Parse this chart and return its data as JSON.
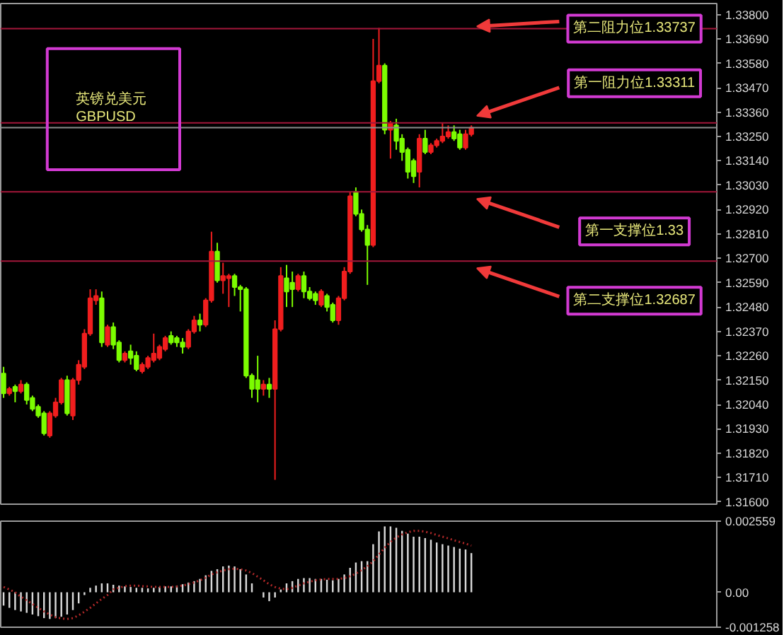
{
  "chart_data": [
    {
      "type": "candlestick",
      "title": "英镑兑美元",
      "subtitle": "GBPUSD",
      "categories": [
        null,
        null,
        null,
        null,
        null,
        null,
        null,
        null,
        null,
        null,
        null,
        null,
        null,
        null,
        null,
        null,
        null,
        null,
        null,
        null,
        null,
        null,
        null,
        null,
        null,
        null,
        null,
        null,
        null,
        null,
        null,
        null,
        null,
        null,
        null,
        null,
        null,
        null,
        null,
        null,
        null,
        null,
        null,
        null,
        null,
        null,
        null,
        null,
        null,
        null,
        null,
        null,
        null,
        null,
        null,
        null,
        null,
        null,
        null,
        null,
        null,
        null,
        null,
        null,
        null,
        null,
        null,
        null,
        null,
        null,
        null,
        null,
        null,
        null,
        null,
        null,
        null,
        null,
        null,
        null,
        null,
        null,
        null,
        null,
        null,
        null,
        null,
        null,
        null,
        null,
        null,
        null,
        null,
        null,
        null,
        null,
        null,
        null,
        null,
        null,
        null,
        null,
        null,
        null,
        null,
        null,
        null,
        null,
        null,
        null,
        null,
        null,
        null,
        null,
        null,
        null,
        null,
        null,
        null,
        null,
        null,
        null,
        null,
        null
      ],
      "ohlc": [
        [
          1.3218,
          1.3221,
          1.3207,
          1.3209
        ],
        [
          1.3209,
          1.3212,
          1.3208,
          1.3211
        ],
        [
          1.3212,
          1.3213,
          1.3205,
          1.321
        ],
        [
          1.321,
          1.3215,
          1.3209,
          1.3213
        ],
        [
          1.3213,
          1.3214,
          1.3204,
          1.3206
        ],
        [
          1.3207,
          1.3208,
          1.3201,
          1.3202
        ],
        [
          1.3203,
          1.3204,
          1.3198,
          1.3199
        ],
        [
          1.32,
          1.3201,
          1.319,
          1.3191
        ],
        [
          1.319,
          1.3201,
          1.3189,
          1.32
        ],
        [
          1.3199,
          1.3207,
          1.3198,
          1.3205
        ],
        [
          1.3205,
          1.3216,
          1.3204,
          1.3215
        ],
        [
          1.3215,
          1.3217,
          1.3199,
          1.32
        ],
        [
          1.3199,
          1.3216,
          1.3197,
          1.3215
        ],
        [
          1.3215,
          1.3224,
          1.3213,
          1.3222
        ],
        [
          1.3221,
          1.3238,
          1.322,
          1.3236
        ],
        [
          1.3236,
          1.3256,
          1.3235,
          1.3252
        ],
        [
          1.3251,
          1.3256,
          1.3249,
          1.3253
        ],
        [
          1.3252,
          1.3255,
          1.323,
          1.3232
        ],
        [
          1.3231,
          1.324,
          1.323,
          1.3239
        ],
        [
          1.3239,
          1.3241,
          1.3229,
          1.3231
        ],
        [
          1.3232,
          1.3233,
          1.3223,
          1.3224
        ],
        [
          1.3224,
          1.3228,
          1.3223,
          1.3227
        ],
        [
          1.3228,
          1.3231,
          1.3222,
          1.3225
        ],
        [
          1.3226,
          1.3228,
          1.3219,
          1.322
        ],
        [
          1.3219,
          1.3223,
          1.3218,
          1.3222
        ],
        [
          1.3221,
          1.3226,
          1.322,
          1.3225
        ],
        [
          1.3224,
          1.3236,
          1.3223,
          1.3227
        ],
        [
          1.3225,
          1.3231,
          1.3224,
          1.323
        ],
        [
          1.3229,
          1.3235,
          1.3228,
          1.3234
        ],
        [
          1.3235,
          1.3237,
          1.3231,
          1.3232
        ],
        [
          1.3234,
          1.3235,
          1.323,
          1.3232
        ],
        [
          1.3232,
          1.3234,
          1.3227,
          1.323
        ],
        [
          1.323,
          1.3238,
          1.3229,
          1.3237
        ],
        [
          1.3237,
          1.3244,
          1.3236,
          1.3242
        ],
        [
          1.3242,
          1.3245,
          1.3237,
          1.324
        ],
        [
          1.324,
          1.3252,
          1.3239,
          1.3251
        ],
        [
          1.3251,
          1.3282,
          1.325,
          1.3273
        ],
        [
          1.3273,
          1.3277,
          1.3259,
          1.326
        ],
        [
          1.326,
          1.3268,
          1.3254,
          1.3262
        ],
        [
          1.3261,
          1.3263,
          1.3248,
          1.3262
        ],
        [
          1.3262,
          1.3263,
          1.3253,
          1.3257
        ],
        [
          1.3257,
          1.3258,
          1.3246,
          1.3256
        ],
        [
          1.3256,
          1.3257,
          1.3216,
          1.3217
        ],
        [
          1.3217,
          1.3218,
          1.3207,
          1.3211
        ],
        [
          1.3215,
          1.3226,
          1.3205,
          1.3211
        ],
        [
          1.3211,
          1.3215,
          1.3208,
          1.3213
        ],
        [
          1.3213,
          1.3216,
          1.3207,
          1.3211
        ],
        [
          1.3211,
          1.3242,
          1.317,
          1.3238
        ],
        [
          1.3238,
          1.3266,
          1.3237,
          1.3262
        ],
        [
          1.3261,
          1.3267,
          1.3248,
          1.3255
        ],
        [
          1.3259,
          1.3264,
          1.3248,
          1.3256
        ],
        [
          1.3256,
          1.3263,
          1.3255,
          1.3262
        ],
        [
          1.3262,
          1.3264,
          1.3252,
          1.3255
        ],
        [
          1.3255,
          1.3257,
          1.3251,
          1.3252
        ],
        [
          1.3254,
          1.3255,
          1.3249,
          1.3251
        ],
        [
          1.3249,
          1.3256,
          1.3248,
          1.3255
        ],
        [
          1.3253,
          1.3254,
          1.3246,
          1.3248
        ],
        [
          1.3249,
          1.325,
          1.3241,
          1.3242
        ],
        [
          1.3242,
          1.3253,
          1.324,
          1.3252
        ],
        [
          1.3252,
          1.3266,
          1.3251,
          1.3264
        ],
        [
          1.3264,
          1.33,
          1.3263,
          1.3298
        ],
        [
          1.33,
          1.3302,
          1.3289,
          1.329
        ],
        [
          1.329,
          1.3292,
          1.3282,
          1.3283
        ],
        [
          1.3283,
          1.3285,
          1.3258,
          1.3276
        ],
        [
          1.3276,
          1.3369,
          1.3275,
          1.335
        ],
        [
          1.335,
          1.3374,
          1.3349,
          1.3357
        ],
        [
          1.3357,
          1.3358,
          1.3326,
          1.3328
        ],
        [
          1.3328,
          1.3332,
          1.3315,
          1.3331
        ],
        [
          1.333,
          1.3333,
          1.3319,
          1.3323
        ],
        [
          1.3324,
          1.3326,
          1.3314,
          1.3318
        ],
        [
          1.3319,
          1.332,
          1.3306,
          1.3309
        ],
        [
          1.3314,
          1.3315,
          1.3304,
          1.3307
        ],
        [
          1.3309,
          1.3326,
          1.3302,
          1.3324
        ],
        [
          1.3324,
          1.3328,
          1.3317,
          1.3318
        ],
        [
          1.3318,
          1.3322,
          1.3317,
          1.3321
        ],
        [
          1.3321,
          1.3324,
          1.332,
          1.3323
        ],
        [
          1.3323,
          1.3331,
          1.3322,
          1.3325
        ],
        [
          1.3325,
          1.333,
          1.3324,
          1.3327
        ],
        [
          1.3327,
          1.333,
          1.3323,
          1.3324
        ],
        [
          1.3326,
          1.3328,
          1.3319,
          1.332
        ],
        [
          1.332,
          1.3328,
          1.3319,
          1.3326
        ],
        [
          1.3326,
          1.333,
          1.3325,
          1.3329
        ],
        null,
        null,
        null,
        null,
        null,
        null,
        null,
        null,
        null,
        null,
        null,
        null,
        null,
        null,
        null,
        null,
        null,
        null,
        null,
        null,
        null,
        null,
        null,
        null,
        null,
        null,
        null,
        null,
        null,
        null,
        null,
        null,
        null,
        null,
        null,
        null,
        null,
        null,
        null,
        null,
        null,
        null
      ],
      "colors": [
        "#7cfc00",
        "#f01e1e",
        "#7cfc00",
        "#f01e1e",
        "#7cfc00",
        "#7cfc00",
        "#7cfc00",
        "#7cfc00",
        "#f01e1e",
        "#f01e1e",
        "#f01e1e",
        "#7cfc00",
        "#f01e1e",
        "#f01e1e",
        "#f01e1e",
        "#f01e1e",
        "#f01e1e",
        "#7cfc00",
        "#f01e1e",
        "#7cfc00",
        "#7cfc00",
        "#f01e1e",
        "#7cfc00",
        "#7cfc00",
        "#f01e1e",
        "#f01e1e",
        "#f01e1e",
        "#f01e1e",
        "#f01e1e",
        "#7cfc00",
        "#7cfc00",
        "#7cfc00",
        "#f01e1e",
        "#f01e1e",
        "#7cfc00",
        "#f01e1e",
        "#f01e1e",
        "#7cfc00",
        "#f01e1e",
        "#f01e1e",
        "#7cfc00",
        "#7cfc00",
        "#7cfc00",
        "#7cfc00",
        "#7cfc00",
        "#f01e1e",
        "#7cfc00",
        "#f01e1e",
        "#f01e1e",
        "#7cfc00",
        "#7cfc00",
        "#f01e1e",
        "#7cfc00",
        "#7cfc00",
        "#7cfc00",
        "#f01e1e",
        "#7cfc00",
        "#7cfc00",
        "#f01e1e",
        "#f01e1e",
        "#f01e1e",
        "#7cfc00",
        "#7cfc00",
        "#7cfc00",
        "#f01e1e",
        "#f01e1e",
        "#7cfc00",
        "#f01e1e",
        "#7cfc00",
        "#7cfc00",
        "#7cfc00",
        "#7cfc00",
        "#f01e1e",
        "#7cfc00",
        "#f01e1e",
        "#f01e1e",
        "#f01e1e",
        "#f01e1e",
        "#7cfc00",
        "#7cfc00",
        "#f01e1e",
        "#f01e1e",
        null,
        null,
        null,
        null,
        null,
        null,
        null,
        null,
        null,
        null,
        null,
        null,
        null,
        null,
        null,
        null,
        null,
        null,
        null,
        null,
        null,
        null,
        null,
        null,
        null,
        null,
        null,
        null,
        null,
        null,
        null,
        null,
        null,
        null,
        null,
        null,
        null,
        null,
        null,
        null,
        null,
        null
      ],
      "ylim": [
        1.3159,
        1.3385
      ],
      "yticks": [
        {
          "value": 1.316,
          "label": "1.31600"
        },
        {
          "value": 1.3171,
          "label": "1.31710"
        },
        {
          "value": 1.3182,
          "label": "1.31820"
        },
        {
          "value": 1.3193,
          "label": "1.31930"
        },
        {
          "value": 1.3204,
          "label": "1.32040"
        },
        {
          "value": 1.3215,
          "label": "1.32150"
        },
        {
          "value": 1.3226,
          "label": "1.32260"
        },
        {
          "value": 1.3237,
          "label": "1.32370"
        },
        {
          "value": 1.3248,
          "label": "1.32480"
        },
        {
          "value": 1.3259,
          "label": "1.32590"
        },
        {
          "value": 1.327,
          "label": "1.32700"
        },
        {
          "value": 1.3281,
          "label": "1.32810"
        },
        {
          "value": 1.3292,
          "label": "1.32920"
        },
        {
          "value": 1.3303,
          "label": "1.33030"
        },
        {
          "value": 1.3314,
          "label": "1.33140"
        },
        {
          "value": 1.3325,
          "label": "1.33250"
        },
        {
          "value": 1.3336,
          "label": "1.33360"
        },
        {
          "value": 1.3347,
          "label": "1.33470"
        },
        {
          "value": 1.3358,
          "label": "1.33580"
        },
        {
          "value": 1.3369,
          "label": "1.33690"
        },
        {
          "value": 1.338,
          "label": "1.33800"
        }
      ],
      "ref_lines": [
        {
          "axis": "y",
          "value": 1.33737,
          "label": "第二阻力位1.33737",
          "color": "#a3173a"
        },
        {
          "axis": "y",
          "value": 1.33311,
          "label": "第一阻力位1.33311",
          "color": "#a3173a"
        },
        {
          "axis": "y",
          "value": 1.3329,
          "color": "#8c8c8c"
        },
        {
          "axis": "y",
          "value": 1.33,
          "label": "第一支撑位1.33",
          "color": "#a3173a"
        },
        {
          "axis": "y",
          "value": 1.32687,
          "label": "第二支撑位1.32687",
          "color": "#a3173a"
        }
      ],
      "tick_labels": "y"
    },
    {
      "type": "bar",
      "categories": [
        null,
        null,
        null,
        null,
        null,
        null,
        null,
        null,
        null,
        null,
        null,
        null,
        null,
        null,
        null,
        null,
        null,
        null,
        null,
        null,
        null,
        null,
        null,
        null,
        null,
        null,
        null,
        null,
        null,
        null,
        null,
        null,
        null,
        null,
        null,
        null,
        null,
        null,
        null,
        null,
        null,
        null,
        null,
        null,
        null,
        null,
        null,
        null,
        null,
        null,
        null,
        null,
        null,
        null,
        null,
        null,
        null,
        null,
        null,
        null,
        null,
        null,
        null,
        null,
        null,
        null,
        null,
        null,
        null,
        null,
        null,
        null,
        null,
        null,
        null,
        null,
        null,
        null,
        null,
        null,
        null,
        null,
        null,
        null,
        null,
        null,
        null,
        null,
        null,
        null,
        null,
        null,
        null,
        null,
        null,
        null,
        null,
        null,
        null,
        null,
        null,
        null,
        null,
        null,
        null,
        null,
        null,
        null,
        null,
        null,
        null,
        null,
        null,
        null,
        null,
        null,
        null,
        null,
        null,
        null,
        null,
        null,
        null,
        null
      ],
      "series": [
        {
          "type": "bar",
          "color": "#d8d8d8",
          "values": [
            -0.00048,
            -0.00056,
            -0.00064,
            -0.00069,
            -0.00074,
            -0.0008,
            -0.00086,
            -0.00093,
            -0.00096,
            -0.00093,
            -0.00088,
            -0.0008,
            -0.00064,
            -0.0004,
            -0.0001,
            0.00016,
            0.00024,
            0.00032,
            0.00032,
            0.00027,
            0.00024,
            0.00021,
            0.00019,
            0.00016,
            0.00016,
            0.00014,
            0.00016,
            0.00019,
            0.00021,
            0.00021,
            0.00024,
            0.00029,
            0.00035,
            0.0004,
            0.00048,
            0.00061,
            0.00077,
            0.00083,
            0.00093,
            0.00096,
            0.00093,
            0.00083,
            0.00064,
            0.00032,
            0,
            -0.00019,
            -0.00032,
            -0.00019,
            0.0001,
            0.00032,
            0.0004,
            0.00048,
            0.00051,
            0.00051,
            0.00048,
            0.00048,
            0.00045,
            0.00043,
            0.00048,
            0.00064,
            0.00088,
            0.00107,
            0.00112,
            0.00112,
            0.00173,
            0.00219,
            0.00237,
            0.00237,
            0.00232,
            0.00221,
            0.00211,
            0.002,
            0.002,
            0.00195,
            0.00189,
            0.00179,
            0.00173,
            0.00168,
            0.00163,
            0.00157,
            0.00154,
            0.00141,
            null,
            null,
            null,
            null,
            null,
            null,
            null,
            null,
            null,
            null,
            null,
            null,
            null,
            null,
            null,
            null,
            null,
            null,
            null,
            null,
            null,
            null,
            null,
            null,
            null,
            null,
            null,
            null,
            null,
            null,
            null,
            null,
            null,
            null,
            null,
            null,
            null,
            null,
            null,
            null,
            null,
            null
          ]
        },
        {
          "type": "line",
          "color": "#b02828",
          "line_style": "dotted",
          "values": [
            0.00019,
            0.0001,
            0,
            -0.00016,
            -0.00029,
            -0.00042,
            -0.00056,
            -0.00069,
            -0.0008,
            -0.0009,
            -0.00094,
            -0.00096,
            -0.00093,
            -0.00083,
            -0.0007,
            -0.00056,
            -0.0004,
            -0.00024,
            -0.0001,
            0.0001,
            0.00016,
            0.00022,
            0.00024,
            0.00024,
            0.00022,
            0.00021,
            0.00019,
            0.00019,
            0.00019,
            0.00019,
            0.00021,
            0.00024,
            0.00029,
            0.00035,
            0.00043,
            0.00053,
            0.00064,
            0.00072,
            0.00078,
            0.00083,
            0.00085,
            0.00083,
            0.00078,
            0.00069,
            0.00056,
            0.00043,
            0.00029,
            0.00019,
            0.00013,
            0.00011,
            0.00016,
            0.00024,
            0.00032,
            0.00038,
            0.00043,
            0.00046,
            0.00048,
            0.00048,
            0.00048,
            0.00051,
            0.00058,
            0.00067,
            0.0008,
            0.00093,
            0.00112,
            0.00136,
            0.0016,
            0.00181,
            0.00197,
            0.00208,
            0.00216,
            0.00221,
            0.00221,
            0.00218,
            0.00213,
            0.00206,
            0.002,
            0.00194,
            0.00187,
            0.00181,
            0.00175,
            0.00168,
            null,
            null,
            null,
            null,
            null,
            null,
            null,
            null,
            null,
            null,
            null,
            null,
            null,
            null,
            null,
            null,
            null,
            null,
            null,
            null,
            null,
            null,
            null,
            null,
            null,
            null,
            null,
            null,
            null,
            null,
            null,
            null,
            null,
            null,
            null,
            null,
            null,
            null,
            null,
            null,
            null,
            null
          ]
        }
      ],
      "ylim": [
        -0.001258,
        0.002559
      ],
      "yticks": [
        0.002559,
        {
          "value": 0,
          "label": "0.00"
        },
        -0.001258
      ],
      "tick_labels": "y"
    }
  ]
}
